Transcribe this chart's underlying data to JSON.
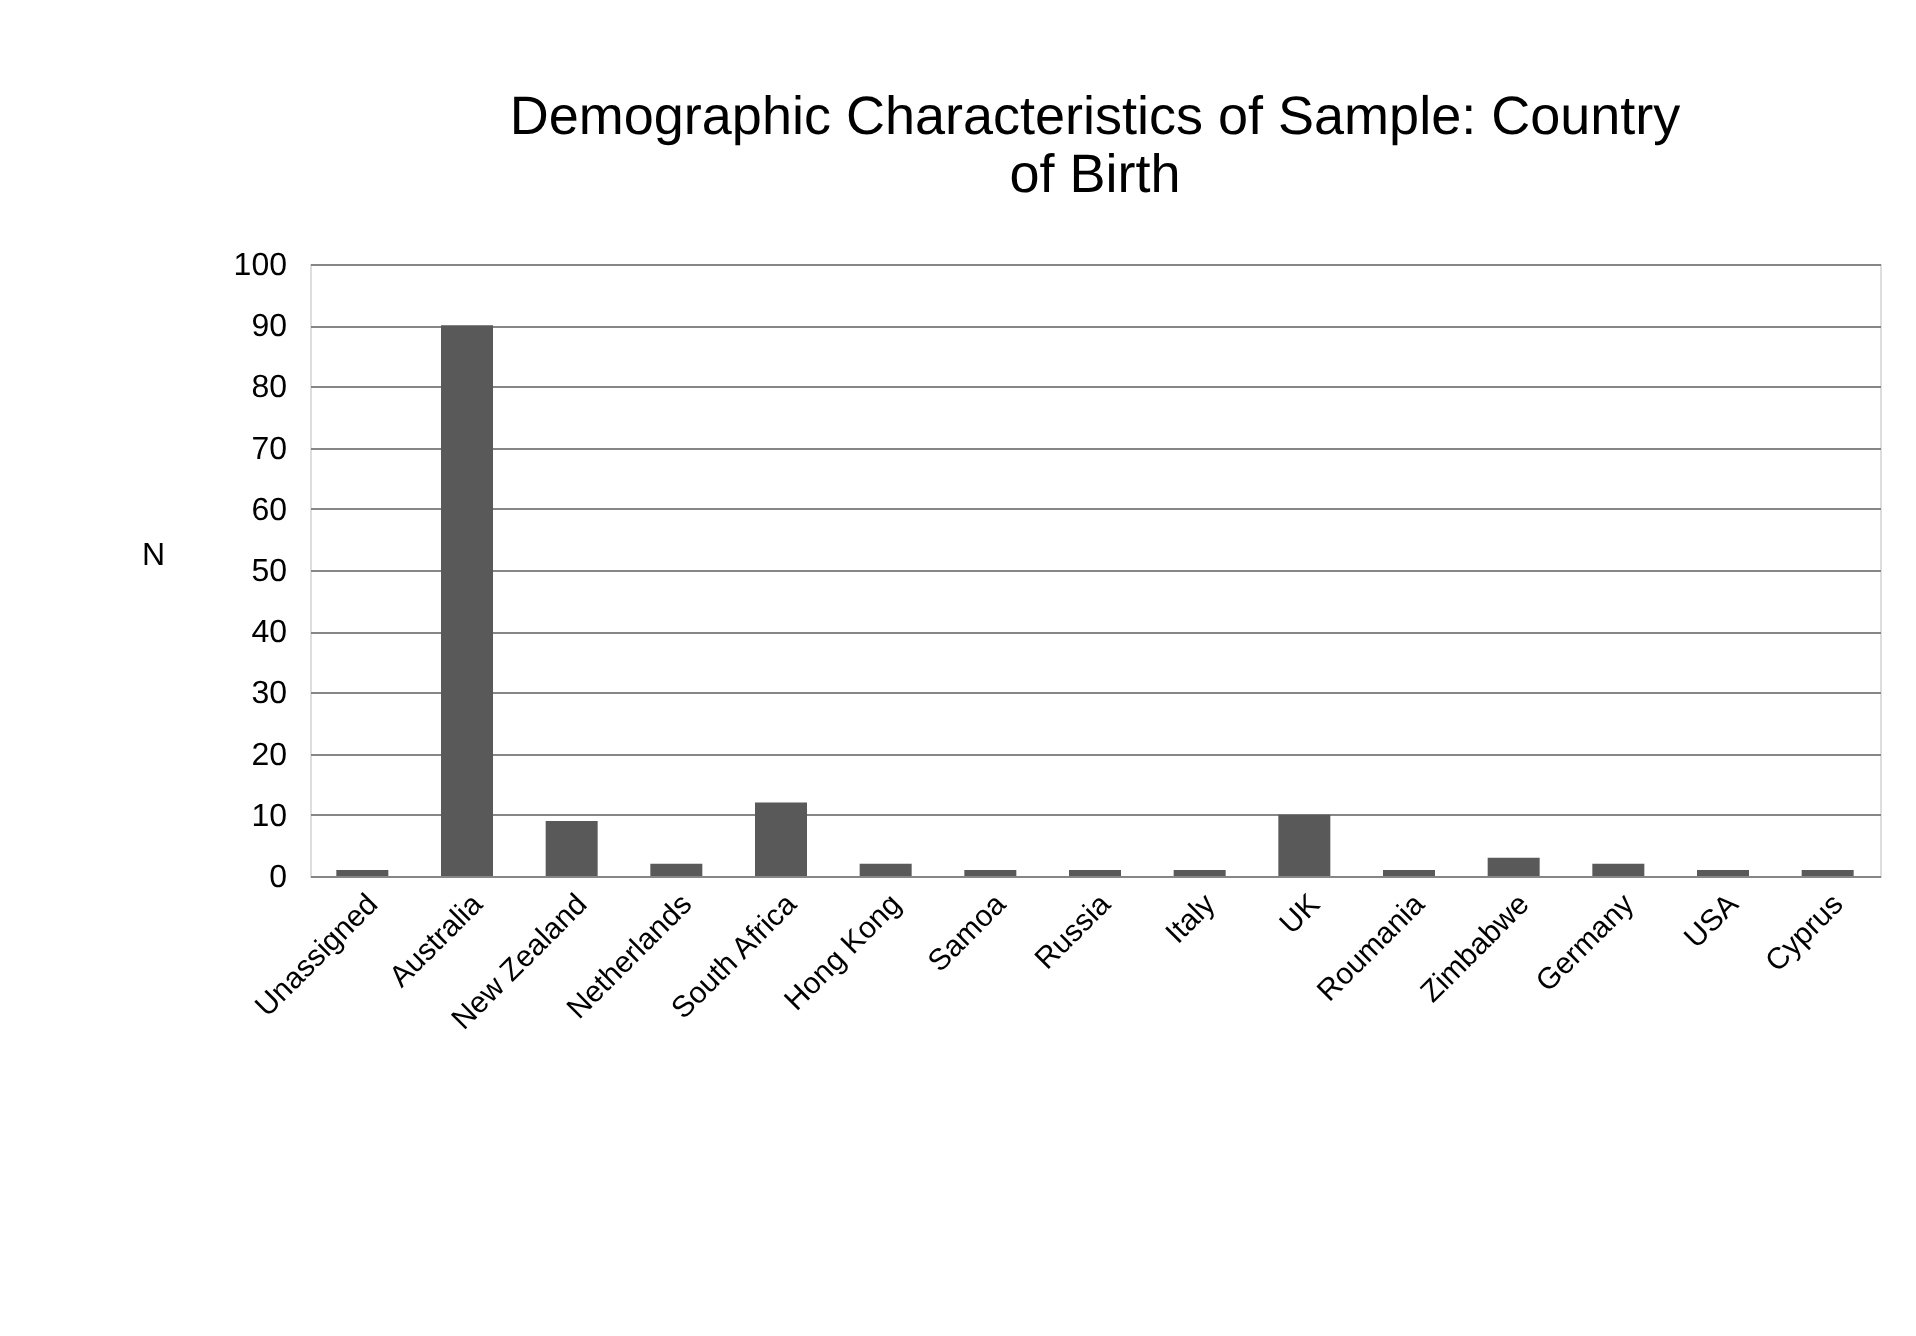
{
  "chart_data": {
    "type": "bar",
    "title": "Demographic Characteristics of Sample: Country of Birth",
    "ylabel": "N",
    "categories": [
      "Unassigned",
      "Australia",
      "New Zealand",
      "Netherlands",
      "South Africa",
      "Hong Kong",
      "Samoa",
      "Russia",
      "Italy",
      "UK",
      "Roumania",
      "Zimbabwe",
      "Germany",
      "USA",
      "Cyprus"
    ],
    "values": [
      1,
      90,
      9,
      2,
      12,
      2,
      1,
      1,
      1,
      10,
      1,
      3,
      2,
      1,
      1
    ],
    "color": "#595959",
    "ylim": [
      0,
      100
    ],
    "yticks": [
      0,
      10,
      20,
      30,
      40,
      50,
      60,
      70,
      80,
      90,
      100
    ],
    "grid": "y"
  }
}
